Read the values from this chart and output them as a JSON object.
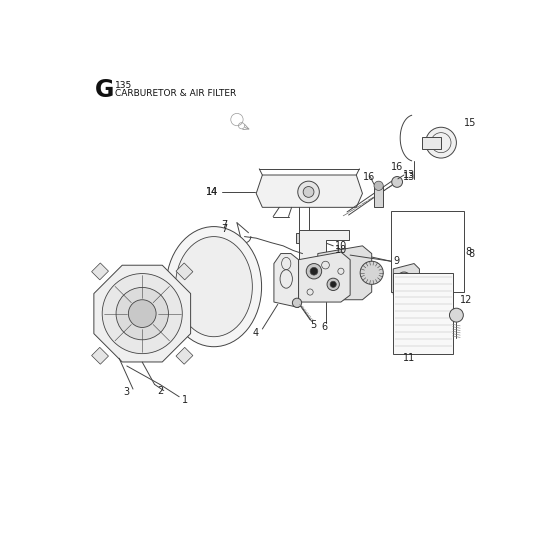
{
  "title_letter": "G",
  "title_number": "135",
  "title_text": "CARBURETOR & AIR FILTER",
  "bg_color": "#ffffff",
  "line_color": "#444444",
  "label_color": "#222222",
  "fig_w": 5.6,
  "fig_h": 5.6,
  "dpi": 100
}
